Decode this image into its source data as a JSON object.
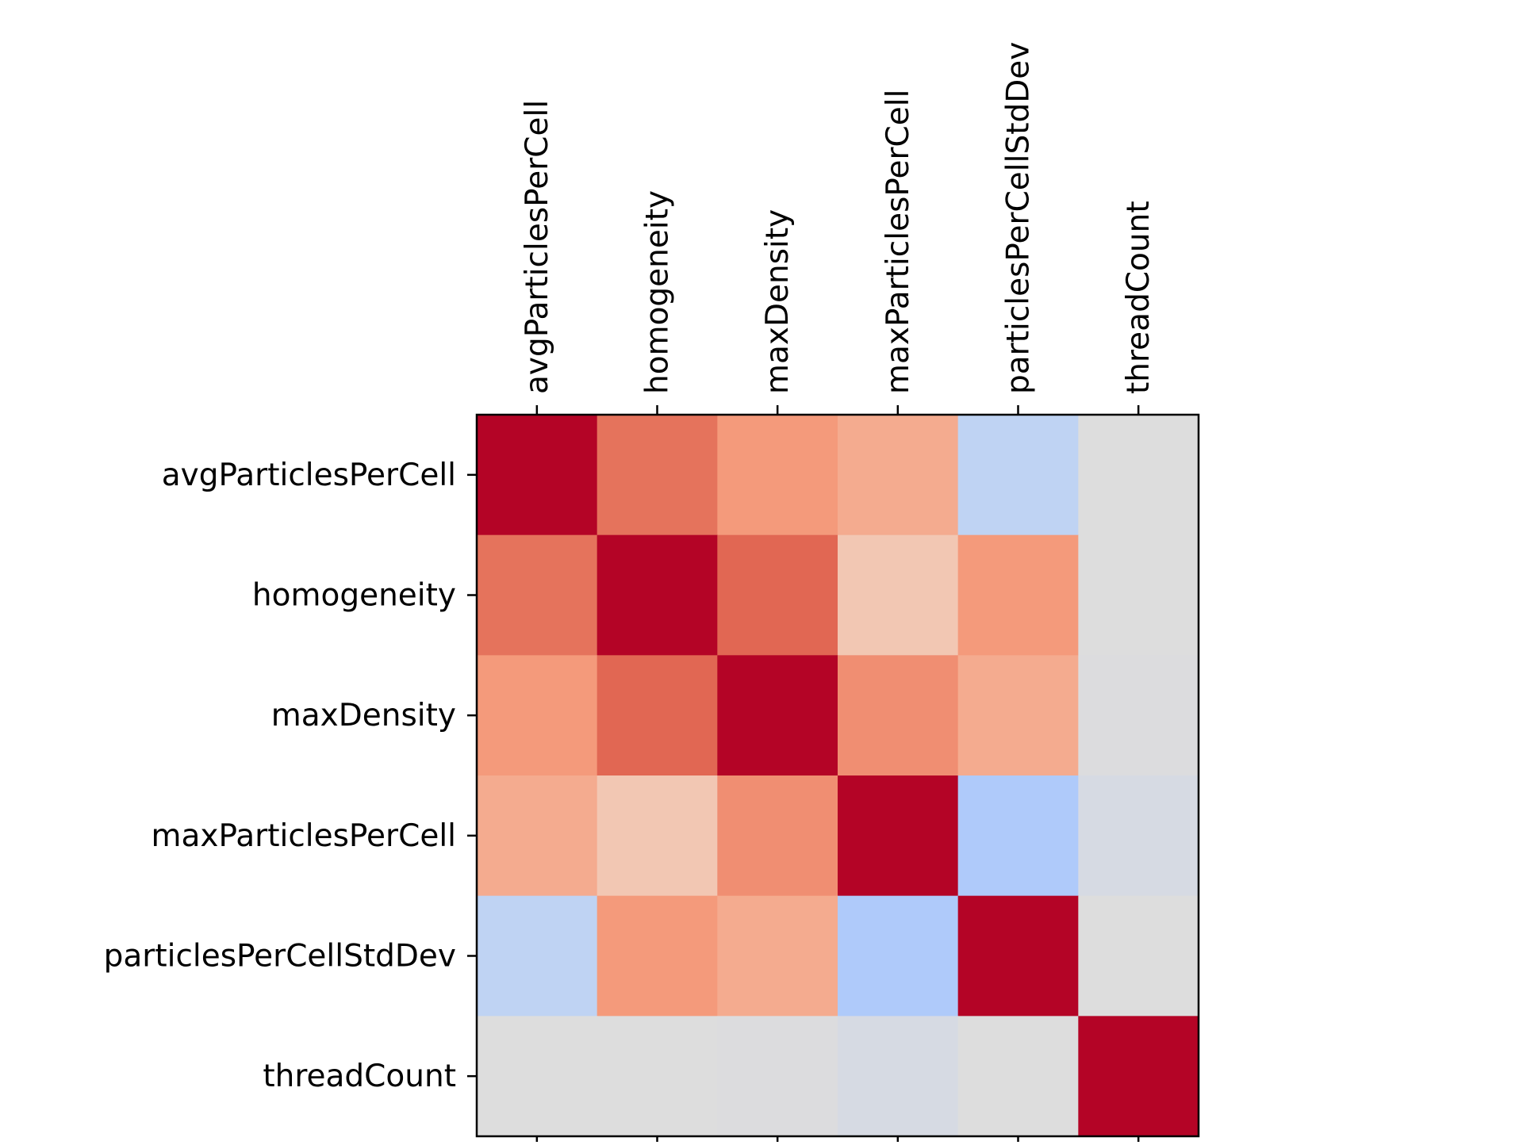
{
  "chart_data": {
    "type": "heatmap",
    "title": "",
    "xlabel": "",
    "ylabel": "",
    "x_tick_position": "top",
    "y_tick_position": "left",
    "colormap": "coolwarm",
    "value_range": [
      -1,
      1
    ],
    "colorbar": false,
    "grid": false,
    "rows": [
      "avgParticlesPerCell",
      "homogeneity",
      "maxDensity",
      "maxParticlesPerCell",
      "particlesPerCellStdDev",
      "threadCount"
    ],
    "columns": [
      "avgParticlesPerCell",
      "homogeneity",
      "maxDensity",
      "maxParticlesPerCell",
      "particlesPerCellStdDev",
      "threadCount"
    ],
    "values": [
      [
        1.0,
        0.67,
        0.5,
        0.4,
        -0.2,
        0.0
      ],
      [
        0.67,
        1.0,
        0.72,
        0.22,
        0.5,
        0.0
      ],
      [
        0.5,
        0.72,
        1.0,
        0.55,
        0.4,
        -0.01
      ],
      [
        0.4,
        0.22,
        0.55,
        1.0,
        -0.3,
        -0.05
      ],
      [
        -0.2,
        0.5,
        0.4,
        -0.3,
        1.0,
        0.0
      ],
      [
        0.0,
        0.0,
        -0.01,
        -0.05,
        0.0,
        1.0
      ]
    ]
  }
}
